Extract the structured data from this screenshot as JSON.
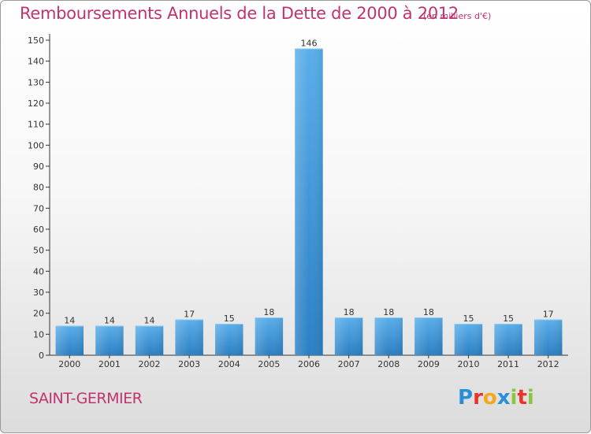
{
  "title": "Remboursements Annuels de la Dette de 2000 à 2012",
  "units": "(en milliers d'€)",
  "commune": "SAINT-GERMIER",
  "logo": {
    "letters": [
      {
        "ch": "P",
        "color": "#2a8fd6"
      },
      {
        "ch": "r",
        "color": "#e8342d"
      },
      {
        "ch": "o",
        "color": "#f2a71f"
      },
      {
        "ch": "x",
        "color": "#2a8fd6"
      },
      {
        "ch": "i",
        "color": "#8cc63e"
      },
      {
        "ch": "t",
        "color": "#e8342d"
      },
      {
        "ch": "i",
        "color": "#8cc63e"
      }
    ]
  },
  "colors": {
    "title": "#c0336e",
    "bar_light": "#5aaeea",
    "bar_dark": "#2b7fc3",
    "axis": "#333333",
    "grid": "#dddddd"
  },
  "chart_data": {
    "type": "bar",
    "title": "Remboursements Annuels de la Dette de 2000 à 2012",
    "categories": [
      "2000",
      "2001",
      "2002",
      "2003",
      "2004",
      "2005",
      "2006",
      "2007",
      "2008",
      "2009",
      "2010",
      "2011",
      "2012"
    ],
    "values": [
      14,
      14,
      14,
      17,
      15,
      18,
      146,
      18,
      18,
      18,
      15,
      15,
      17
    ],
    "data_labels": [
      "14",
      "14",
      "14",
      "17",
      "15",
      "18",
      "146",
      "18",
      "18",
      "18",
      "15",
      "15",
      "17"
    ],
    "ylim": [
      0,
      150
    ],
    "yticks": [
      0,
      10,
      20,
      30,
      40,
      50,
      60,
      70,
      80,
      90,
      100,
      110,
      120,
      130,
      140,
      150
    ],
    "xlabel": "",
    "ylabel": "",
    "grid": false,
    "legend": "none"
  }
}
